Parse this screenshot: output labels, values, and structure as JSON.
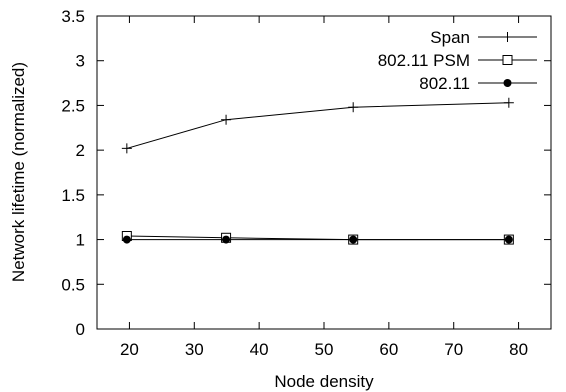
{
  "chart_data": {
    "type": "line",
    "xlabel": "Node density",
    "ylabel": "Network lifetime (normalized)",
    "xlim": [
      15,
      85
    ],
    "ylim": [
      0,
      3.5
    ],
    "xticks": [
      20,
      30,
      40,
      50,
      60,
      70,
      80
    ],
    "yticks": [
      0,
      0.5,
      1,
      1.5,
      2,
      2.5,
      3,
      3.5
    ],
    "xtick_labels": [
      "20",
      "30",
      "40",
      "50",
      "60",
      "70",
      "80"
    ],
    "ytick_labels": [
      "0",
      "0.5",
      "1",
      "1.5",
      "2",
      "2.5",
      "3",
      "3.5"
    ],
    "grid": false,
    "legend_position": "top-right",
    "series": [
      {
        "name": "Span",
        "marker": "plus",
        "x": [
          19.6,
          34.9,
          54.5,
          78.5
        ],
        "y": [
          2.02,
          2.34,
          2.48,
          2.53
        ]
      },
      {
        "name": "802.11 PSM",
        "marker": "open-square",
        "x": [
          19.6,
          34.9,
          54.5,
          78.5
        ],
        "y": [
          1.04,
          1.02,
          1.0,
          1.0
        ]
      },
      {
        "name": "802.11",
        "marker": "filled-circle",
        "x": [
          19.6,
          34.9,
          54.5,
          78.5
        ],
        "y": [
          1.0,
          1.0,
          1.0,
          1.0
        ]
      }
    ]
  }
}
